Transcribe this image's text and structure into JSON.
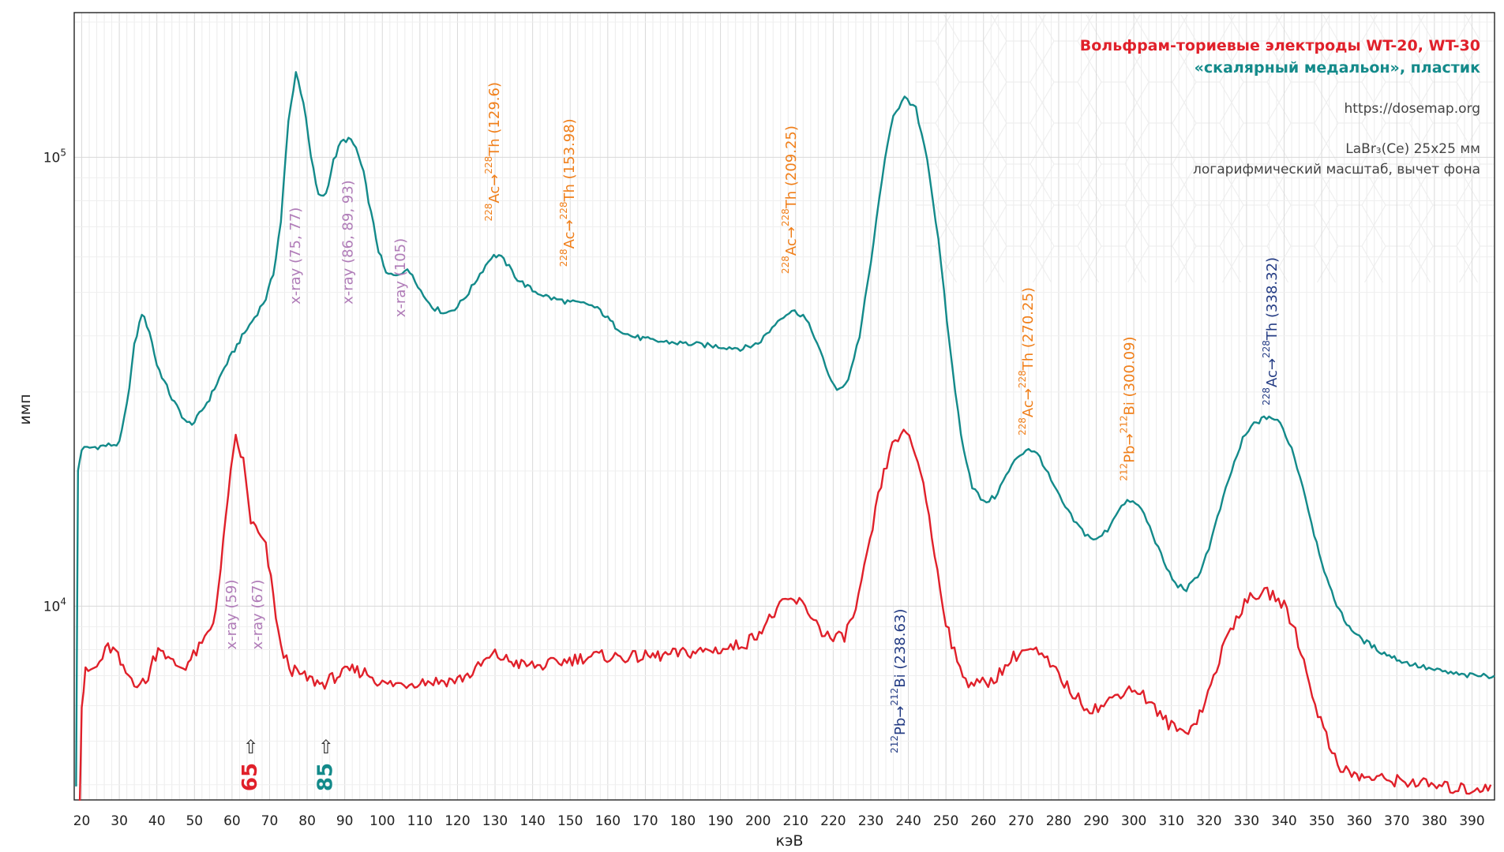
{
  "chart_data": {
    "type": "line",
    "title": "Вольфрам-ториевые электроды WT-20, WT-30",
    "subtitle": "«скалярный медальон», пластик",
    "info_lines": [
      "https://dosemap.org",
      "LaBr₃(Ce) 25x25 мм",
      "логарифмический масштаб, вычет фона"
    ],
    "xlabel": "кэВ",
    "ylabel": "имп",
    "yscale": "log",
    "xlim": [
      18,
      396
    ],
    "ylim": [
      3700,
      210000
    ],
    "x_ticks": [
      20,
      30,
      40,
      50,
      60,
      70,
      80,
      90,
      100,
      110,
      120,
      130,
      140,
      150,
      160,
      170,
      180,
      190,
      200,
      210,
      220,
      230,
      240,
      250,
      260,
      270,
      280,
      290,
      300,
      310,
      320,
      330,
      340,
      350,
      360,
      370,
      380,
      390
    ],
    "y_ticks": [
      {
        "value": 10000,
        "base": "10",
        "exp": "4"
      },
      {
        "value": 100000,
        "base": "10",
        "exp": "5"
      }
    ],
    "grid": true,
    "colors": {
      "teal": "#138a8a",
      "red": "#e0202a",
      "orange": "#f07f1a",
      "navy": "#243c84",
      "purple": "#b07cb8",
      "grid": "#d9d9d9"
    },
    "series": [
      {
        "name": "85",
        "color": "#138a8a",
        "points": [
          [
            18.5,
            4000
          ],
          [
            19,
            20000
          ],
          [
            20,
            22400
          ],
          [
            25,
            22700
          ],
          [
            30,
            23000
          ],
          [
            32,
            28000
          ],
          [
            34,
            38000
          ],
          [
            36,
            45000
          ],
          [
            38,
            41000
          ],
          [
            40,
            34500
          ],
          [
            44,
            29000
          ],
          [
            48,
            25500
          ],
          [
            50,
            25700
          ],
          [
            54,
            29000
          ],
          [
            58,
            34000
          ],
          [
            62,
            39000
          ],
          [
            66,
            44000
          ],
          [
            69,
            48500
          ],
          [
            71,
            55000
          ],
          [
            73,
            72000
          ],
          [
            75,
            120000
          ],
          [
            77,
            155000
          ],
          [
            79,
            133000
          ],
          [
            81,
            100000
          ],
          [
            83,
            82000
          ],
          [
            85,
            83000
          ],
          [
            87,
            98000
          ],
          [
            89,
            108000
          ],
          [
            91,
            110000
          ],
          [
            93,
            105000
          ],
          [
            95,
            92000
          ],
          [
            97,
            75000
          ],
          [
            99,
            62000
          ],
          [
            101,
            55000
          ],
          [
            103,
            54500
          ],
          [
            106,
            56000
          ],
          [
            108,
            55000
          ],
          [
            111,
            49000
          ],
          [
            114,
            46000
          ],
          [
            117,
            45000
          ],
          [
            120,
            46500
          ],
          [
            123,
            50000
          ],
          [
            126,
            55000
          ],
          [
            129,
            60000
          ],
          [
            131,
            60500
          ],
          [
            133,
            58000
          ],
          [
            136,
            53500
          ],
          [
            140,
            50500
          ],
          [
            145,
            48500
          ],
          [
            150,
            47500
          ],
          [
            155,
            47000
          ],
          [
            158,
            45500
          ],
          [
            162,
            42000
          ],
          [
            166,
            40000
          ],
          [
            172,
            39000
          ],
          [
            180,
            38500
          ],
          [
            188,
            38000
          ],
          [
            196,
            37500
          ],
          [
            200,
            38500
          ],
          [
            203,
            41000
          ],
          [
            206,
            44000
          ],
          [
            209,
            45500
          ],
          [
            212,
            44500
          ],
          [
            215,
            40000
          ],
          [
            218,
            34000
          ],
          [
            221,
            30000
          ],
          [
            224,
            32000
          ],
          [
            227,
            40000
          ],
          [
            230,
            58000
          ],
          [
            233,
            90000
          ],
          [
            236,
            125000
          ],
          [
            239,
            135000
          ],
          [
            242,
            128000
          ],
          [
            245,
            100000
          ],
          [
            248,
            65000
          ],
          [
            251,
            38000
          ],
          [
            254,
            24000
          ],
          [
            257,
            18500
          ],
          [
            260,
            17000
          ],
          [
            263,
            17500
          ],
          [
            266,
            19500
          ],
          [
            269,
            21500
          ],
          [
            272,
            22500
          ],
          [
            275,
            21500
          ],
          [
            278,
            19000
          ],
          [
            281,
            17000
          ],
          [
            284,
            15500
          ],
          [
            287,
            14500
          ],
          [
            290,
            14000
          ],
          [
            293,
            14800
          ],
          [
            296,
            16500
          ],
          [
            299,
            17200
          ],
          [
            302,
            16500
          ],
          [
            305,
            14500
          ],
          [
            308,
            12500
          ],
          [
            311,
            11200
          ],
          [
            314,
            10900
          ],
          [
            317,
            11600
          ],
          [
            320,
            13500
          ],
          [
            323,
            16500
          ],
          [
            326,
            20000
          ],
          [
            329,
            23500
          ],
          [
            332,
            25500
          ],
          [
            336,
            26500
          ],
          [
            339,
            25500
          ],
          [
            342,
            22500
          ],
          [
            345,
            18500
          ],
          [
            348,
            14500
          ],
          [
            352,
            11000
          ],
          [
            356,
            9300
          ],
          [
            360,
            8500
          ],
          [
            366,
            7900
          ],
          [
            372,
            7500
          ],
          [
            380,
            7200
          ],
          [
            388,
            7000
          ],
          [
            396,
            7000
          ]
        ]
      },
      {
        "name": "65",
        "color": "#e0202a",
        "points": [
          [
            19.5,
            3800
          ],
          [
            20,
            6000
          ],
          [
            21,
            7100
          ],
          [
            24,
            7300
          ],
          [
            27,
            8100
          ],
          [
            29,
            7900
          ],
          [
            31,
            7200
          ],
          [
            34,
            6800
          ],
          [
            37,
            6700
          ],
          [
            39,
            7600
          ],
          [
            41,
            8200
          ],
          [
            43,
            7600
          ],
          [
            45,
            7400
          ],
          [
            47,
            7300
          ],
          [
            49,
            7600
          ],
          [
            52,
            8200
          ],
          [
            55,
            9200
          ],
          [
            57,
            12000
          ],
          [
            59,
            18000
          ],
          [
            61,
            23500
          ],
          [
            63,
            21000
          ],
          [
            65,
            15500
          ],
          [
            67,
            14500
          ],
          [
            69,
            13500
          ],
          [
            71,
            10500
          ],
          [
            73,
            8000
          ],
          [
            76,
            7200
          ],
          [
            80,
            6900
          ],
          [
            84,
            6700
          ],
          [
            88,
            7000
          ],
          [
            92,
            7200
          ],
          [
            96,
            7100
          ],
          [
            100,
            6700
          ],
          [
            105,
            6700
          ],
          [
            110,
            6800
          ],
          [
            115,
            6800
          ],
          [
            120,
            6850
          ],
          [
            124,
            7100
          ],
          [
            127,
            7500
          ],
          [
            130,
            7800
          ],
          [
            133,
            7600
          ],
          [
            137,
            7400
          ],
          [
            142,
            7350
          ],
          [
            147,
            7500
          ],
          [
            152,
            7650
          ],
          [
            157,
            7750
          ],
          [
            162,
            7700
          ],
          [
            168,
            7700
          ],
          [
            174,
            7750
          ],
          [
            180,
            7850
          ],
          [
            186,
            7950
          ],
          [
            192,
            8050
          ],
          [
            197,
            8300
          ],
          [
            201,
            8900
          ],
          [
            205,
            9800
          ],
          [
            208,
            10300
          ],
          [
            211,
            10200
          ],
          [
            214,
            9600
          ],
          [
            217,
            8800
          ],
          [
            220,
            8400
          ],
          [
            223,
            8600
          ],
          [
            226,
            9800
          ],
          [
            229,
            12800
          ],
          [
            232,
            17500
          ],
          [
            235,
            22000
          ],
          [
            238,
            24500
          ],
          [
            241,
            23000
          ],
          [
            244,
            19000
          ],
          [
            247,
            13000
          ],
          [
            250,
            9300
          ],
          [
            253,
            7400
          ],
          [
            256,
            6800
          ],
          [
            259,
            6700
          ],
          [
            262,
            6800
          ],
          [
            265,
            7200
          ],
          [
            268,
            7700
          ],
          [
            271,
            8000
          ],
          [
            274,
            7900
          ],
          [
            277,
            7500
          ],
          [
            280,
            7000
          ],
          [
            283,
            6500
          ],
          [
            286,
            6100
          ],
          [
            289,
            5900
          ],
          [
            292,
            6000
          ],
          [
            295,
            6300
          ],
          [
            298,
            6550
          ],
          [
            301,
            6500
          ],
          [
            304,
            6150
          ],
          [
            307,
            5700
          ],
          [
            310,
            5400
          ],
          [
            313,
            5250
          ],
          [
            316,
            5450
          ],
          [
            319,
            6100
          ],
          [
            322,
            7300
          ],
          [
            325,
            8600
          ],
          [
            328,
            9700
          ],
          [
            331,
            10400
          ],
          [
            334,
            10700
          ],
          [
            337,
            10600
          ],
          [
            340,
            10000
          ],
          [
            343,
            8800
          ],
          [
            346,
            7100
          ],
          [
            349,
            5800
          ],
          [
            352,
            4900
          ],
          [
            355,
            4400
          ],
          [
            358,
            4200
          ],
          [
            362,
            4150
          ],
          [
            368,
            4100
          ],
          [
            375,
            4050
          ],
          [
            382,
            3950
          ],
          [
            390,
            3900
          ],
          [
            395,
            4000
          ]
        ]
      }
    ],
    "annotations": [
      {
        "lines": [
          "x-ray (75, 77)"
        ],
        "x_kev": 77,
        "y_value": 47000,
        "color": "#b07cb8"
      },
      {
        "lines": [
          "x-ray (86, 89, 93)"
        ],
        "x_kev": 91,
        "y_value": 47000,
        "color": "#b07cb8"
      },
      {
        "lines": [
          "x-ray (105)"
        ],
        "x_kev": 105,
        "y_value": 44000,
        "color": "#b07cb8"
      },
      {
        "lines": [
          "x-ray (59)"
        ],
        "x_kev": 60,
        "y_value": 8000,
        "color": "#b07cb8"
      },
      {
        "lines": [
          "x-ray (67)"
        ],
        "x_kev": 67,
        "y_value": 8000,
        "color": "#b07cb8"
      },
      {
        "parts": [
          {
            "t": "228",
            "sup": true
          },
          {
            "t": "Ac→",
            "sup": false
          },
          {
            "t": "228",
            "sup": true
          },
          {
            "t": "Th (129.6)",
            "sup": false
          }
        ],
        "x_kev": 130,
        "y_value": 72000,
        "color": "#f07f1a"
      },
      {
        "parts": [
          {
            "t": "228",
            "sup": true
          },
          {
            "t": "Ac→",
            "sup": false
          },
          {
            "t": "228",
            "sup": true
          },
          {
            "t": "Th (153.98)",
            "sup": false
          }
        ],
        "x_kev": 150,
        "y_value": 57000,
        "color": "#f07f1a"
      },
      {
        "parts": [
          {
            "t": "228",
            "sup": true
          },
          {
            "t": "Ac→",
            "sup": false
          },
          {
            "t": "228",
            "sup": true
          },
          {
            "t": "Th (209.25)",
            "sup": false
          }
        ],
        "x_kev": 209,
        "y_value": 55000,
        "color": "#f07f1a"
      },
      {
        "parts": [
          {
            "t": "228",
            "sup": true
          },
          {
            "t": "Ac→",
            "sup": false
          },
          {
            "t": "228",
            "sup": true
          },
          {
            "t": "Th (270.25)",
            "sup": false
          }
        ],
        "x_kev": 272,
        "y_value": 24000,
        "color": "#f07f1a"
      },
      {
        "parts": [
          {
            "t": "212",
            "sup": true
          },
          {
            "t": "Pb→",
            "sup": false
          },
          {
            "t": "212",
            "sup": true
          },
          {
            "t": "Bi (300.09)",
            "sup": false
          }
        ],
        "x_kev": 299,
        "y_value": 19000,
        "color": "#f07f1a"
      },
      {
        "parts": [
          {
            "t": "228",
            "sup": true
          },
          {
            "t": "Ac→",
            "sup": false
          },
          {
            "t": "228",
            "sup": true
          },
          {
            "t": "Th (338.32)",
            "sup": false
          }
        ],
        "x_kev": 337,
        "y_value": 28000,
        "color": "#243c84"
      },
      {
        "parts": [
          {
            "t": "212",
            "sup": true
          },
          {
            "t": "Pb→",
            "sup": false
          },
          {
            "t": "212",
            "sup": true
          },
          {
            "t": "Bi (238.63)",
            "sup": false
          }
        ],
        "x_kev": 238,
        "y_value": 4700,
        "color": "#243c84"
      }
    ],
    "markers": [
      {
        "label": "65",
        "x_kev": 65,
        "color": "#e0202a"
      },
      {
        "label": "85",
        "x_kev": 85,
        "color": "#138a8a"
      }
    ],
    "arrow_glyph": "⇧"
  }
}
